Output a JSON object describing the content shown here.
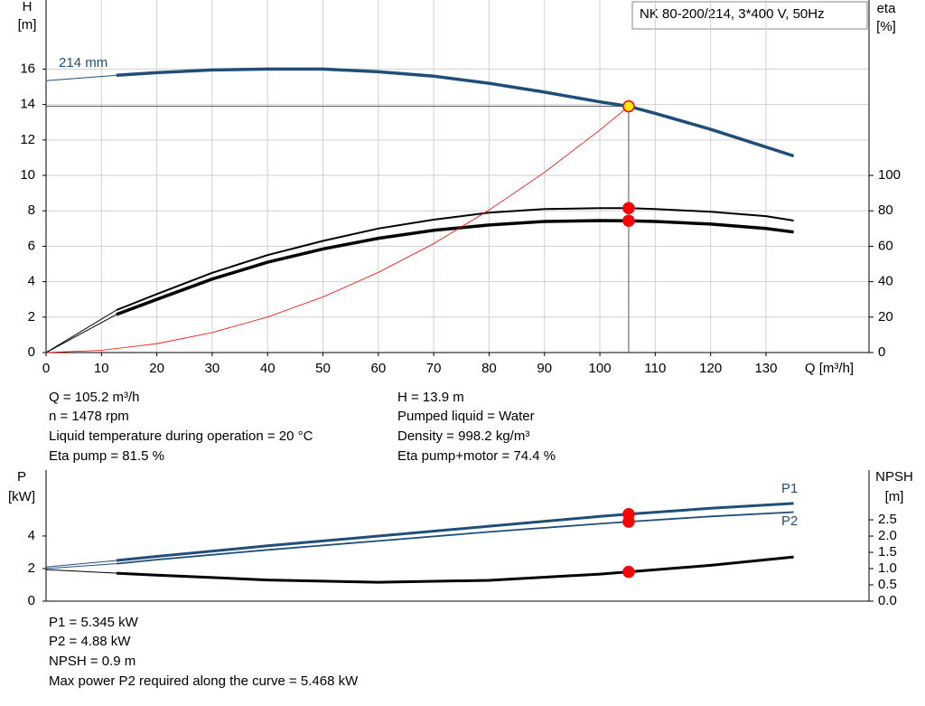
{
  "chart_data": [
    {
      "type": "line",
      "title": "NK 80-200/214, 3*400 V, 50Hz",
      "y_label": "H",
      "y_unit": "[m]",
      "y2_label": "eta",
      "y2_unit": "[%]",
      "x_label": "Q [m³/h]",
      "xlim": [
        0,
        148.6
      ],
      "xticks": [
        0,
        10,
        20,
        30,
        40,
        50,
        60,
        70,
        80,
        90,
        100,
        110,
        120,
        130
      ],
      "ylim": [
        0,
        19.9
      ],
      "yticks": [
        0,
        2,
        4,
        6,
        8,
        10,
        12,
        14,
        16
      ],
      "y2lim": [
        0,
        199
      ],
      "y2ticks": [
        0,
        20,
        40,
        60,
        80,
        100
      ],
      "grid": true,
      "crosshair": true,
      "series": [
        {
          "color": "#1f4e79",
          "width": 1,
          "x": [
            0,
            12.7
          ],
          "values": [
            15.35,
            15.65
          ]
        },
        {
          "name": "214 mm",
          "color": "#1f4e79",
          "width": 3.5,
          "x": [
            12.7,
            20,
            30,
            40,
            50,
            60,
            70,
            80,
            90,
            100,
            105.2,
            110,
            120,
            130,
            135
          ],
          "values": [
            15.65,
            15.8,
            15.95,
            16.0,
            16.0,
            15.85,
            15.6,
            15.2,
            14.7,
            14.15,
            13.9,
            13.5,
            12.6,
            11.6,
            11.1
          ]
        },
        {
          "color": "#000000",
          "width": 1,
          "axis": "y2",
          "x": [
            0,
            12.7
          ],
          "values": [
            0,
            24
          ]
        },
        {
          "color": "#000000",
          "width": 2,
          "axis": "y2",
          "x": [
            12.7,
            20,
            30,
            40,
            50,
            60,
            70,
            80,
            90,
            100,
            105.2,
            110,
            120,
            130,
            135
          ],
          "values": [
            24,
            33,
            45,
            55,
            63,
            70,
            75,
            79,
            81,
            81.5,
            81.5,
            81,
            79.5,
            77,
            74.5
          ]
        },
        {
          "color": "#000000",
          "width": 1,
          "axis": "y2",
          "x": [
            0,
            12.7
          ],
          "values": [
            0,
            21.5
          ]
        },
        {
          "color": "#000000",
          "width": 3.5,
          "axis": "y2",
          "x": [
            12.7,
            20,
            30,
            40,
            50,
            60,
            70,
            80,
            90,
            100,
            105.2,
            110,
            120,
            130,
            135
          ],
          "values": [
            21.5,
            30,
            41.5,
            51,
            58.5,
            64.5,
            69,
            72,
            74,
            74.5,
            74.4,
            74,
            72.5,
            70,
            68
          ]
        },
        {
          "color": "#ff0000",
          "width": 0.8,
          "x": [
            0,
            10,
            20,
            30,
            40,
            50,
            60,
            70,
            80,
            90,
            100,
            105.2
          ],
          "values": [
            0,
            0.13,
            0.5,
            1.13,
            2.01,
            3.14,
            4.52,
            6.15,
            8.04,
            10.17,
            12.56,
            13.9
          ]
        }
      ],
      "markers": [
        {
          "x": 105.2,
          "y": 13.9,
          "color": "#ffee00"
        },
        {
          "x": 105.2,
          "y": 81.5,
          "color": "#ff0000",
          "axis": "y2"
        },
        {
          "x": 105.2,
          "y": 74.4,
          "color": "#ff0000",
          "axis": "y2"
        }
      ]
    },
    {
      "type": "line",
      "y_label": "P",
      "y_unit": "[kW]",
      "y2_label": "NPSH",
      "y2_unit": "[m]",
      "xlim": [
        0,
        148.6
      ],
      "ylim": [
        0,
        8.05
      ],
      "yticks": [
        0,
        2,
        4
      ],
      "y2lim": [
        0,
        4.03
      ],
      "y2ticks": [
        {
          "value": 0,
          "label": "0.0"
        },
        0.5,
        {
          "value": 1,
          "label": "1.0"
        },
        1.5,
        {
          "value": 2,
          "label": "2.0"
        },
        2.5
      ],
      "grid": false,
      "crosshair": false,
      "series": [
        {
          "color": "#1f4e79",
          "width": 1,
          "x": [
            0,
            12.7
          ],
          "values": [
            2.1,
            2.5
          ]
        },
        {
          "name": "P1",
          "color": "#1f4e79",
          "width": 3,
          "x": [
            12.7,
            20,
            40,
            60,
            80,
            100,
            105.2,
            120,
            135
          ],
          "values": [
            2.5,
            2.75,
            3.4,
            4.0,
            4.6,
            5.2,
            5.345,
            5.7,
            6.0
          ]
        },
        {
          "color": "#1f4e79",
          "width": 1,
          "x": [
            0,
            12.7
          ],
          "values": [
            2.0,
            2.3
          ]
        },
        {
          "name": "P2",
          "color": "#1f4e79",
          "width": 1.8,
          "x": [
            12.7,
            20,
            40,
            60,
            80,
            100,
            105.2,
            120,
            135
          ],
          "values": [
            2.3,
            2.55,
            3.15,
            3.7,
            4.25,
            4.75,
            4.88,
            5.2,
            5.468
          ]
        },
        {
          "color": "#000000",
          "width": 1,
          "axis": "y2",
          "x": [
            0,
            12.7
          ],
          "values": [
            0.97,
            0.86
          ]
        },
        {
          "color": "#000000",
          "width": 3,
          "axis": "y2",
          "x": [
            12.7,
            20,
            40,
            60,
            80,
            100,
            105.2,
            120,
            135
          ],
          "values": [
            0.86,
            0.8,
            0.65,
            0.58,
            0.64,
            0.83,
            0.9,
            1.1,
            1.36
          ]
        }
      ],
      "markers": [
        {
          "x": 105.2,
          "y": 5.345,
          "color": "#ff0000"
        },
        {
          "x": 105.2,
          "y": 4.88,
          "color": "#ff0000"
        },
        {
          "x": 105.2,
          "y": 0.9,
          "color": "#ff0000",
          "axis": "y2"
        }
      ]
    }
  ],
  "info_top": {
    "left": [
      "Q = 105.2 m³/h",
      "n = 1478 rpm",
      "Liquid temperature during operation = 20 °C",
      "Eta pump = 81.5 %"
    ],
    "right": [
      "H = 13.9 m",
      "Pumped liquid = Water",
      "Density = 998.2 kg/m³",
      "Eta pump+motor = 74.4 %"
    ]
  },
  "info_bottom": [
    "P1 = 5.345 kW",
    "P2 = 4.88 kW",
    "NPSH = 0.9 m",
    "Max power P2 required along the curve = 5.468 kW"
  ]
}
